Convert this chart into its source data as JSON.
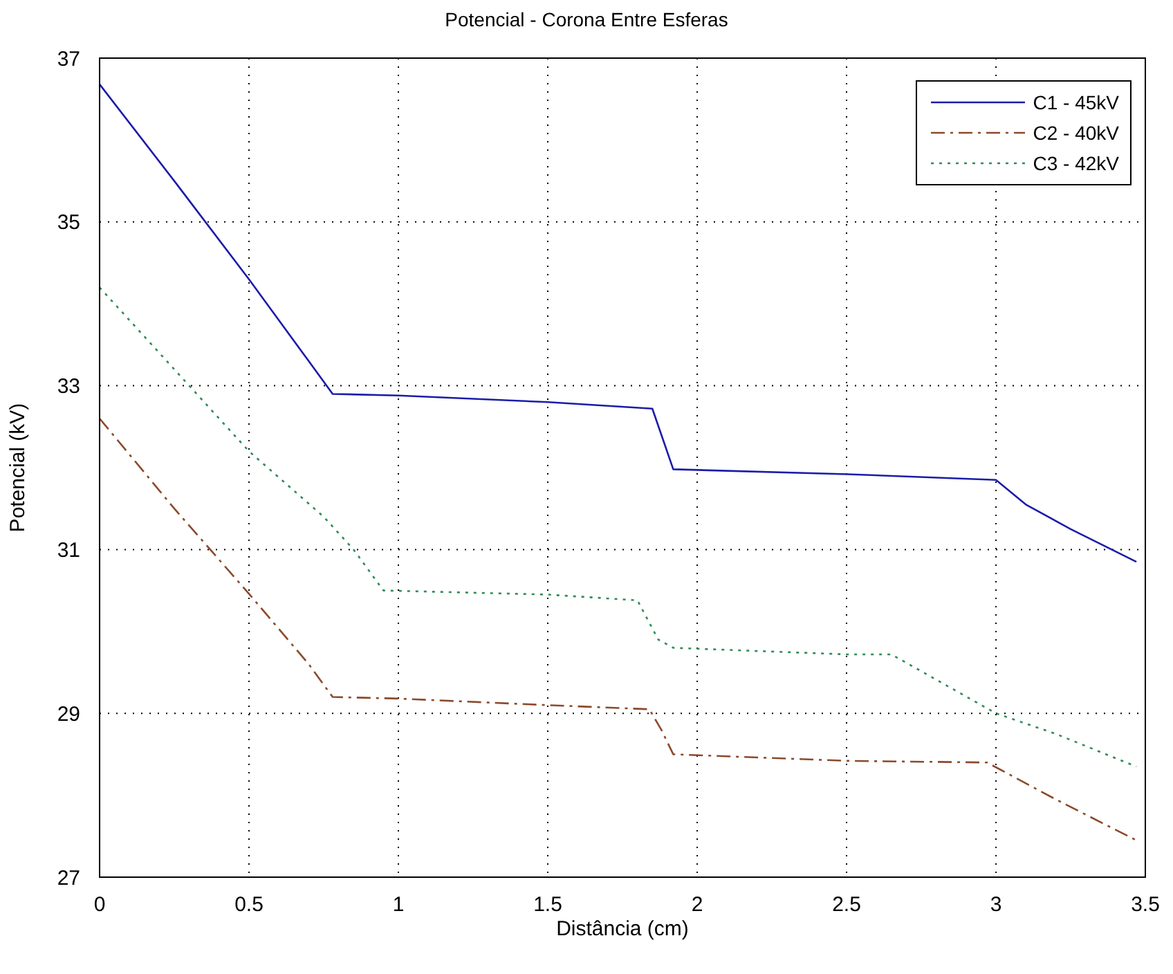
{
  "chart_data": {
    "type": "line",
    "title": "Potencial - Corona Entre Esferas",
    "xlabel": "Distância (cm)",
    "ylabel": "Potencial (kV)",
    "xlim": [
      0,
      3.5
    ],
    "xticks": [
      0,
      0.5,
      1,
      1.5,
      2,
      2.5,
      3,
      3.5
    ],
    "ylim": [
      27,
      37
    ],
    "yticks": [
      27,
      29,
      31,
      33,
      35,
      37
    ],
    "grid": true,
    "legend": "top right",
    "series": [
      {
        "name": "C1 - 45kV",
        "color": "#1c1ca8",
        "line_style": "solid",
        "x": [
          0,
          0.25,
          0.5,
          0.7,
          0.78,
          1.0,
          1.5,
          1.85,
          1.92,
          2.5,
          3.0,
          3.1,
          3.25,
          3.47
        ],
        "values": [
          36.68,
          35.5,
          34.3,
          33.3,
          32.9,
          32.88,
          32.8,
          32.72,
          31.98,
          31.92,
          31.85,
          31.55,
          31.25,
          30.85
        ]
      },
      {
        "name": "C2 - 40kV",
        "color": "#8b4a2b",
        "line_style": "dashdot",
        "x": [
          0,
          0.25,
          0.5,
          0.7,
          0.78,
          1.0,
          1.5,
          1.84,
          1.88,
          1.92,
          2.5,
          2.97,
          3.2,
          3.47
        ],
        "values": [
          32.6,
          31.5,
          30.46,
          29.6,
          29.2,
          29.18,
          29.1,
          29.05,
          28.8,
          28.5,
          28.42,
          28.4,
          27.95,
          27.45
        ]
      },
      {
        "name": "C3 - 42kV",
        "color": "#2e8b57",
        "line_style": "dotted",
        "x": [
          0,
          0.25,
          0.5,
          0.75,
          0.85,
          0.95,
          1.5,
          1.8,
          1.87,
          1.92,
          2.5,
          2.65,
          3.0,
          3.2,
          3.47
        ],
        "values": [
          34.2,
          33.2,
          32.2,
          31.4,
          31.0,
          30.5,
          30.45,
          30.38,
          29.9,
          29.8,
          29.72,
          29.72,
          29.0,
          28.75,
          28.35
        ]
      }
    ]
  }
}
